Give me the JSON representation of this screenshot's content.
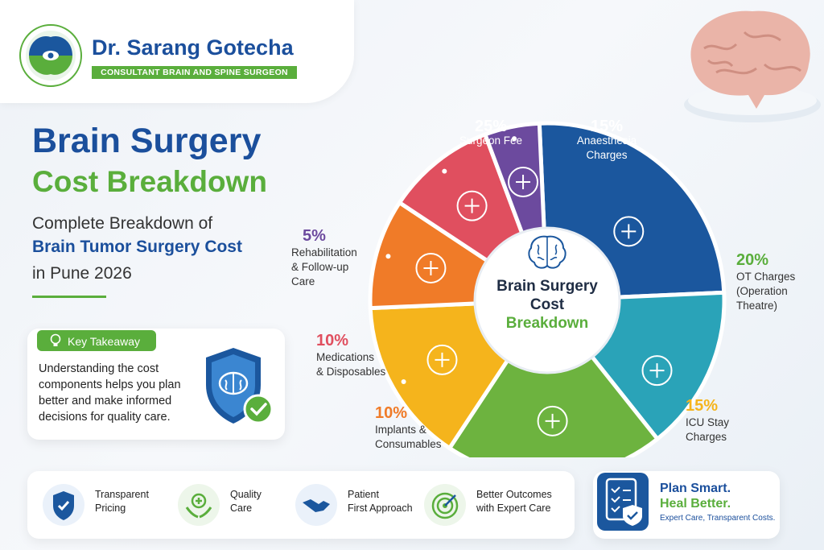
{
  "header": {
    "doctor_name": "Dr. Sarang Gotecha",
    "doctor_title": "CONSULTANT BRAIN AND SPINE SURGEON"
  },
  "hero": {
    "title_line1": "Brain Surgery",
    "title_line2": "Cost Breakdown",
    "subtitle_line1": "Complete Breakdown of",
    "subtitle_line2": "Brain Tumor Surgery Cost",
    "subtitle_line3": "in Pune 2026"
  },
  "takeaway": {
    "label": "Key Takeaway",
    "text": "Understanding the cost components helps you plan better and make informed decisions for quality care."
  },
  "center": {
    "line1": "Brain Surgery",
    "line2": "Cost",
    "line3": "Breakdown"
  },
  "chart_data": {
    "type": "pie",
    "title": "Brain Surgery Cost Breakdown",
    "slices": [
      {
        "label": "Surgeon Fee",
        "value": 25,
        "pct_label": "25%",
        "color": "#1b579e",
        "icon": "surgeon-icon"
      },
      {
        "label": "Anaesthesia Charges",
        "value": 15,
        "pct_label": "15%",
        "color": "#2aa3b8",
        "icon": "anaesthesia-icon"
      },
      {
        "label": "OT Charges (Operation Theatre)",
        "value": 20,
        "pct_label": "20%",
        "color": "#6db33f",
        "icon": "operating-table-icon"
      },
      {
        "label": "ICU Stay Charges",
        "value": 15,
        "pct_label": "15%",
        "color": "#f5b41c",
        "icon": "icu-bed-icon"
      },
      {
        "label": "Implants & Consumables",
        "value": 10,
        "pct_label": "10%",
        "color": "#f07b28",
        "icon": "implant-screw-icon"
      },
      {
        "label": "Medications & Disposables",
        "value": 10,
        "pct_label": "10%",
        "color": "#e04f5f",
        "icon": "medication-icon"
      },
      {
        "label": "Rehabilitation & Follow-up Care",
        "value": 5,
        "pct_label": "5%",
        "color": "#6c4a9e",
        "icon": "rehab-icon"
      }
    ]
  },
  "labels": {
    "surgeon": {
      "pct": "25%",
      "text": "Surgeon Fee"
    },
    "anaesthesia": {
      "pct": "15%",
      "line1": "Anaesthesia",
      "line2": "Charges"
    },
    "ot": {
      "pct": "20%",
      "line1": "OT Charges",
      "line2": "(Operation",
      "line3": "Theatre)"
    },
    "icu": {
      "pct": "15%",
      "line1": "ICU Stay",
      "line2": "Charges"
    },
    "implants": {
      "pct": "10%",
      "line1": "Implants &",
      "line2": "Consumables"
    },
    "medications": {
      "pct": "10%",
      "line1": "Medications",
      "line2": "& Disposables"
    },
    "rehab": {
      "pct": "5%",
      "line1": "Rehabilitation",
      "line2": "& Follow-up",
      "line3": "Care"
    }
  },
  "features": [
    {
      "line1": "Transparent",
      "line2": "Pricing",
      "icon": "shield-check-icon"
    },
    {
      "line1": "Quality",
      "line2": "Care",
      "icon": "hands-care-icon"
    },
    {
      "line1": "Patient",
      "line2": "First Approach",
      "icon": "handshake-icon"
    },
    {
      "line1": "Better Outcomes",
      "line2": "with Expert Care",
      "icon": "target-icon"
    }
  ],
  "plan": {
    "line1": "Plan Smart.",
    "line2": "Heal Better.",
    "line3": "Expert Care, Transparent Costs."
  },
  "colors": {
    "brand_blue": "#1b4f9c",
    "brand_green": "#5aae3c"
  }
}
